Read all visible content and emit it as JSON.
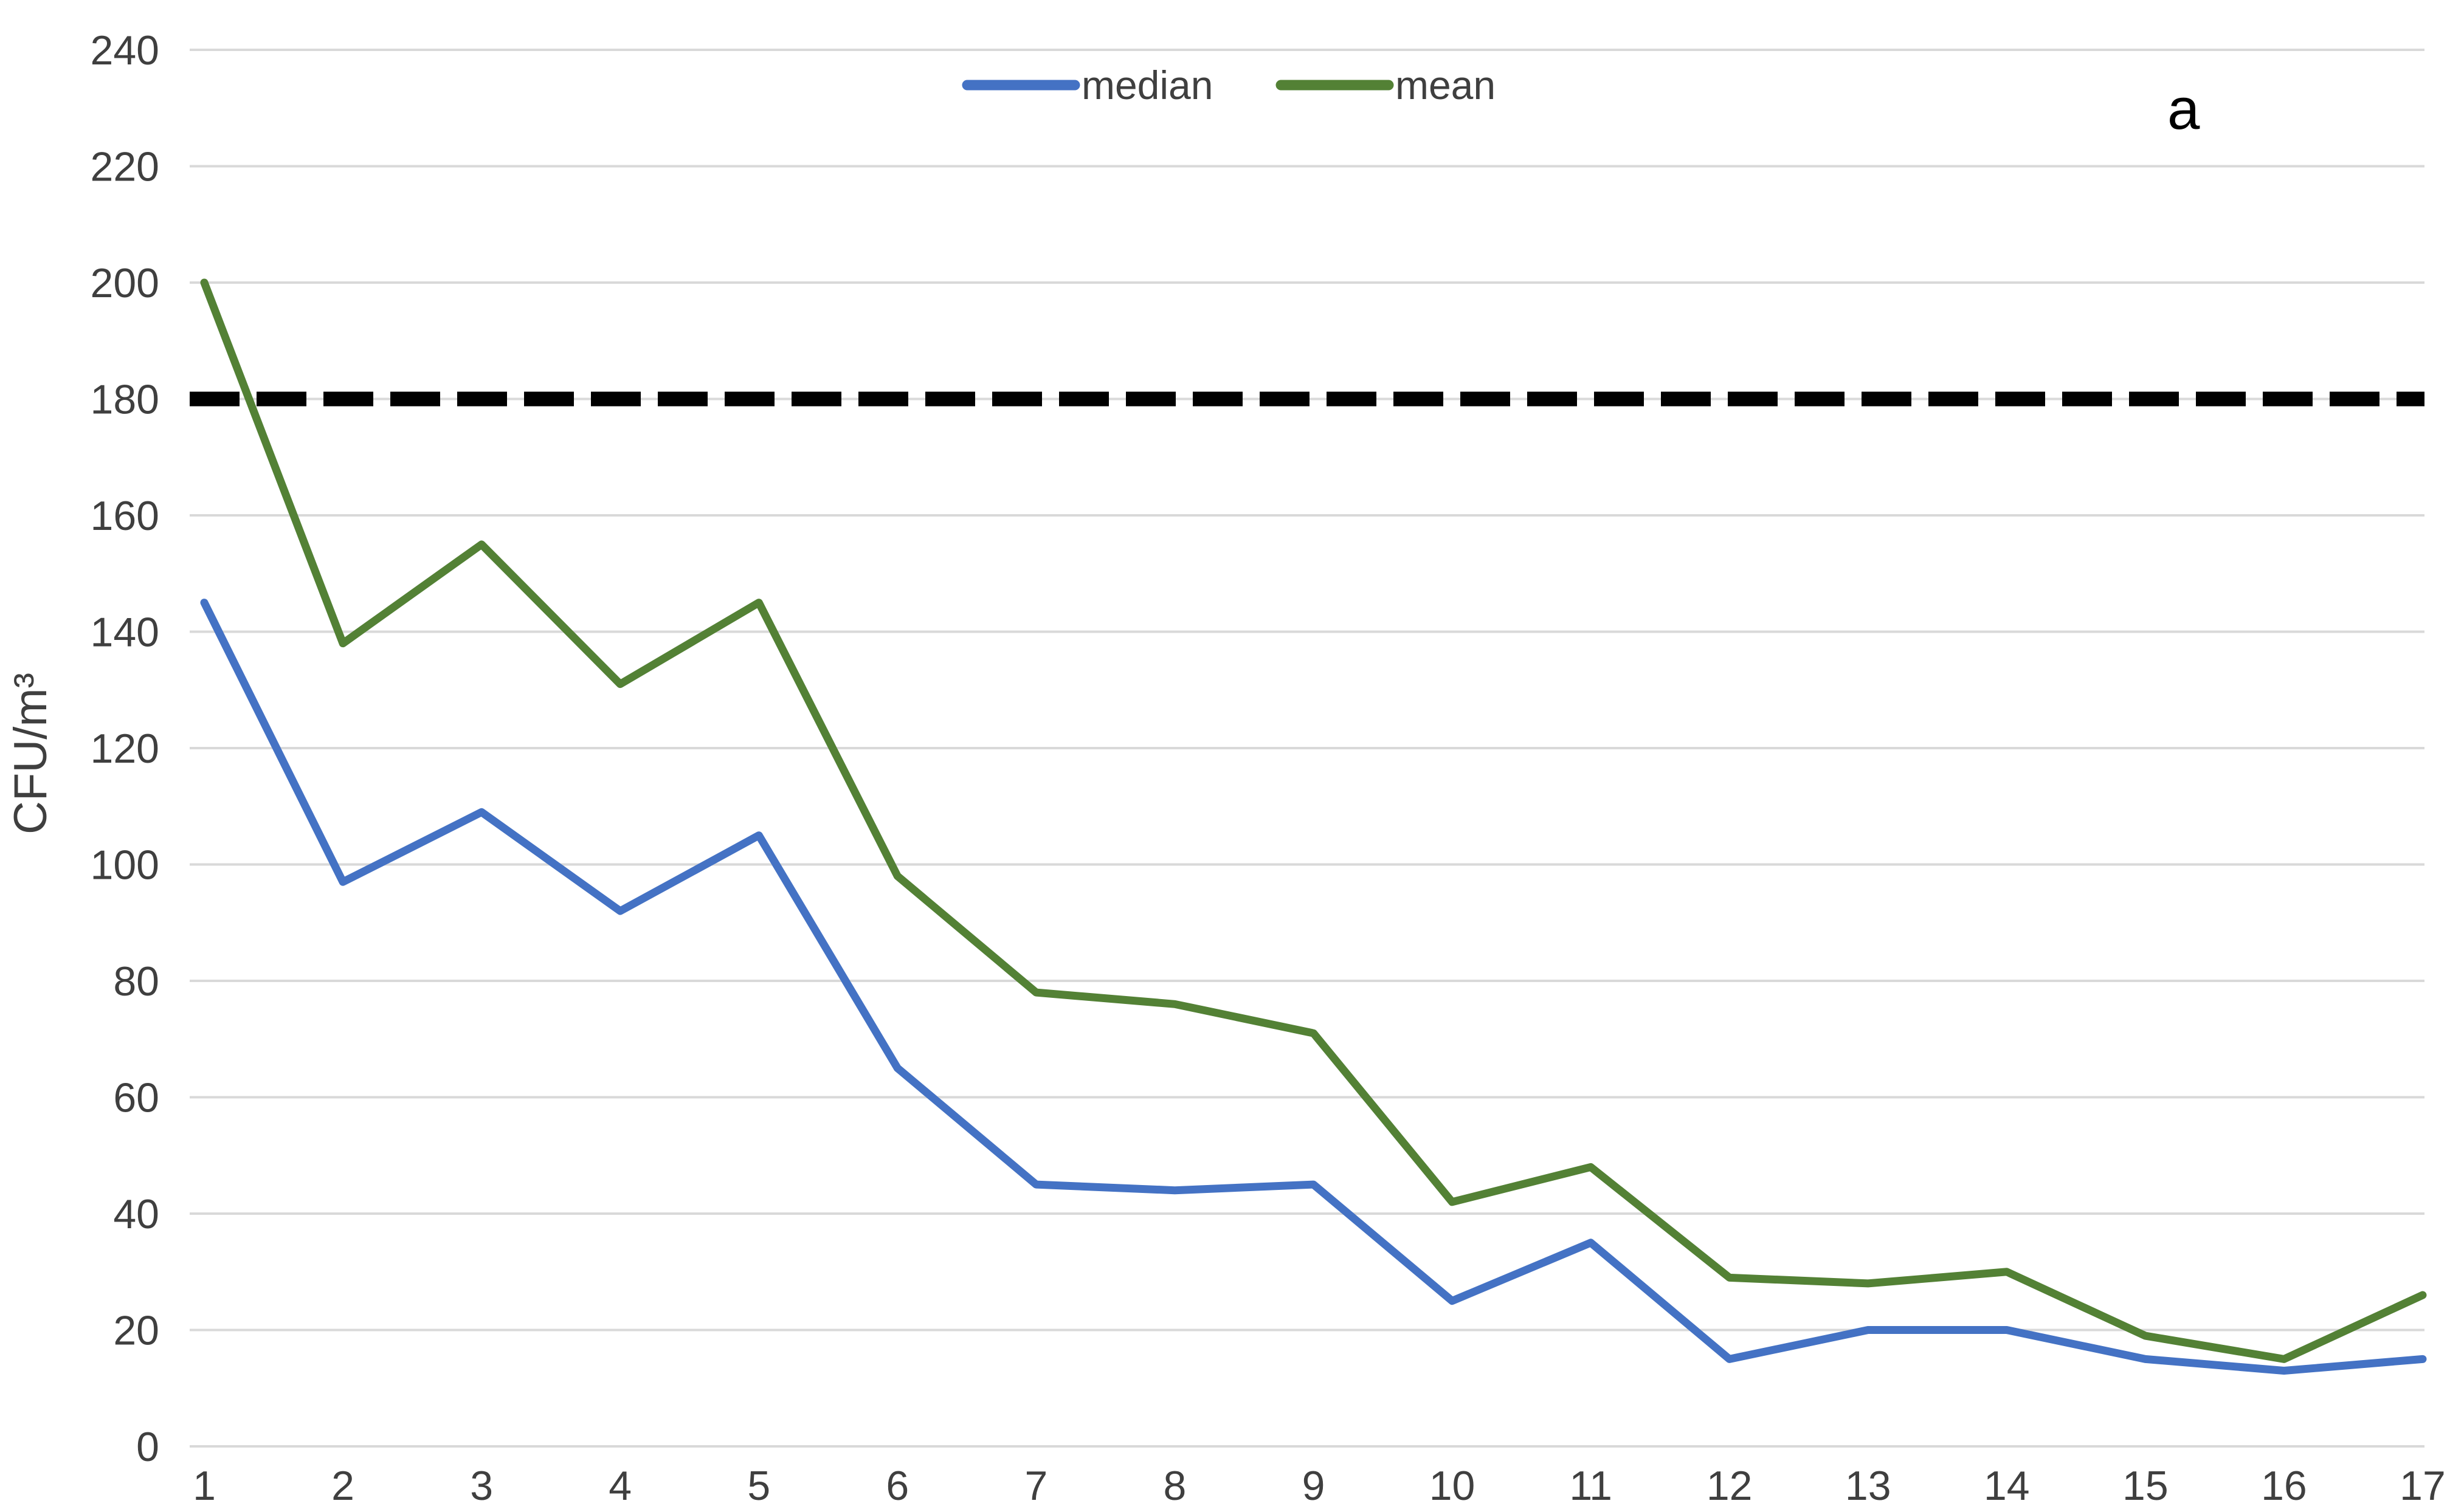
{
  "chart_data": {
    "type": "line",
    "title": "",
    "xlabel": "",
    "ylabel": "CFU/m³",
    "annotation": "a",
    "categories": [
      "1",
      "2",
      "3",
      "4",
      "5",
      "6",
      "7",
      "8",
      "9",
      "10",
      "11",
      "12",
      "13",
      "14",
      "15",
      "16",
      "17"
    ],
    "series": [
      {
        "name": "median",
        "color": "#4472C4",
        "values": [
          145,
          97,
          109,
          92,
          105,
          65,
          45,
          44,
          45,
          25,
          35,
          15,
          20,
          20,
          15,
          13,
          15
        ]
      },
      {
        "name": "mean",
        "color": "#538135",
        "values": [
          200,
          138,
          155,
          131,
          145,
          98,
          78,
          76,
          71,
          42,
          48,
          29,
          28,
          30,
          19,
          15,
          26
        ]
      }
    ],
    "threshold_line": {
      "value": 180,
      "color": "#000000",
      "style": "dashed"
    },
    "ylim": [
      0,
      240
    ],
    "ytick_step": 20,
    "grid": "horizontal-only",
    "gridline_color": "#D9D9D9",
    "text_color": "#3F3F3F",
    "legend_position": "top-center",
    "legend_entries": [
      "median",
      "mean"
    ]
  }
}
